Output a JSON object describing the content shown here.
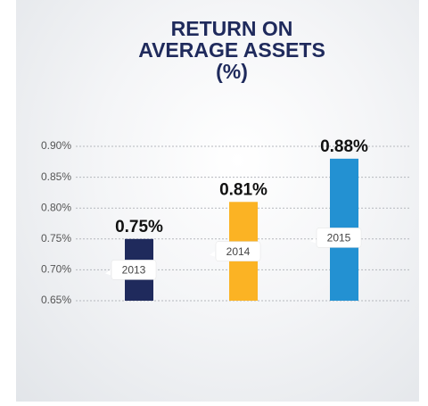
{
  "chart_data": {
    "type": "bar",
    "title": "RETURN ON AVERAGE ASSETS (%)",
    "categories": [
      "2013",
      "2014",
      "2015"
    ],
    "values": [
      0.75,
      0.81,
      0.88
    ],
    "value_labels": [
      "0.75%",
      "0.81%",
      "0.88%"
    ],
    "colors": [
      "#1f2a5c",
      "#fbb324",
      "#2391d2"
    ],
    "ylim": [
      0.65,
      0.9
    ],
    "yticks": [
      {
        "value": 0.65,
        "label": "0.65%"
      },
      {
        "value": 0.7,
        "label": "0.70%"
      },
      {
        "value": 0.75,
        "label": "0.75%"
      },
      {
        "value": 0.8,
        "label": "0.80%"
      },
      {
        "value": 0.85,
        "label": "0.85%"
      },
      {
        "value": 0.9,
        "label": "0.90%"
      }
    ],
    "grid": true
  }
}
